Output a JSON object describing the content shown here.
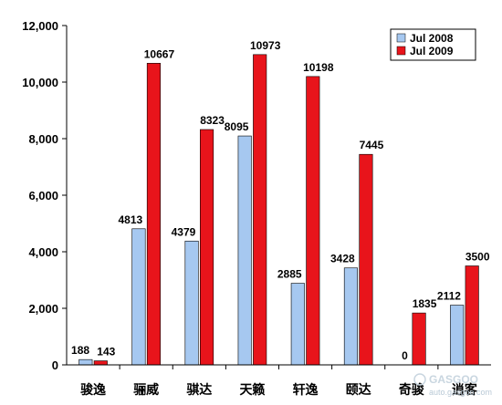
{
  "chart_data": {
    "type": "bar",
    "categories": [
      "骏逸",
      "骊威",
      "骐达",
      "天籁",
      "轩逸",
      "颐达",
      "奇骏",
      "逍客"
    ],
    "series": [
      {
        "name": "Jul 2008",
        "color": "#a6c8f0",
        "values": [
          188,
          4813,
          4379,
          8095,
          2885,
          3428,
          0,
          2112
        ]
      },
      {
        "name": "Jul 2009",
        "color": "#e8141b",
        "values": [
          143,
          10667,
          8323,
          10973,
          10198,
          7445,
          1835,
          3500
        ]
      }
    ],
    "data_labels": [
      [
        "188",
        "4813",
        "4379",
        "8095",
        "2885",
        "3428",
        "0",
        "2112"
      ],
      [
        "143",
        "10667",
        "8323",
        "10973",
        "10198",
        "7445",
        "1835",
        "3500"
      ]
    ],
    "ylim": [
      0,
      12000
    ],
    "yticks": [
      0,
      2000,
      4000,
      6000,
      8000,
      10000,
      12000
    ],
    "ytick_labels": [
      "0",
      "2,000",
      "4,000",
      "6,000",
      "8,000",
      "10,000",
      "12,000"
    ],
    "grid": false,
    "legend_position": "top-right",
    "title": "",
    "xlabel": "",
    "ylabel": ""
  },
  "watermark": {
    "text": "auto.gasgoo.com",
    "logo_text": "GASGOO"
  }
}
